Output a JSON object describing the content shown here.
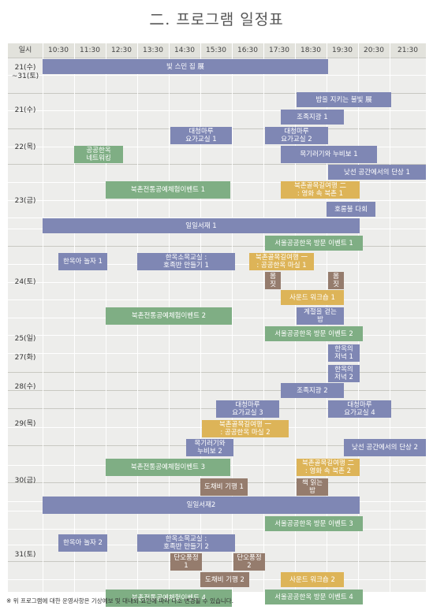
{
  "page_title": "二. 프로그램 일정표",
  "header": {
    "date_col": "일시",
    "times": [
      "10:30",
      "11:30",
      "12:30",
      "13:30",
      "14:30",
      "15:30",
      "16:30",
      "17:30",
      "18:30",
      "19:30",
      "20:30",
      "21:30"
    ]
  },
  "days": [
    "21(수)\n~31(토)",
    "21(수)",
    "22(목)",
    "23(금)",
    "24(토)",
    "25(일)",
    "27(화)",
    "28(수)",
    "29(목)",
    "30(금)",
    "31(토)"
  ],
  "colors": {
    "purple": "#7f87b4",
    "green": "#7fae84",
    "yellow": "#ddb458",
    "brown": "#957c6d"
  },
  "events": [
    {
      "label": "빛 스민 집 展",
      "color": "purple"
    },
    {
      "label": "밤을 지키는 불빛 展",
      "color": "purple"
    },
    {
      "label": "조족지광 1",
      "color": "purple"
    },
    {
      "label": "대청마루\n요가교실 1",
      "color": "purple"
    },
    {
      "label": "대청마루\n요가교실 2",
      "color": "purple"
    },
    {
      "label": "공공한옥\n네트워킹",
      "color": "green"
    },
    {
      "label": "목기러기와 누비보 1",
      "color": "purple"
    },
    {
      "label": "낮선 공간에서의 단상 1",
      "color": "purple"
    },
    {
      "label": "북촌전통공예체험이벤트 1",
      "color": "green"
    },
    {
      "label": "북촌골목길여행 二\n: 영화 속 북촌 1",
      "color": "yellow"
    },
    {
      "label": "호롱불 다회",
      "color": "purple"
    },
    {
      "label": "일일서재 1",
      "color": "purple"
    },
    {
      "label": "서울공공한옥 방문 이벤트 1",
      "color": "green"
    },
    {
      "label": "한옥아 놀자 1",
      "color": "purple"
    },
    {
      "label": "한옥소목교실 :\n호족반 만들기 1",
      "color": "purple"
    },
    {
      "label": "북촌골목길여행 一\n: 공공한옥 마실 1",
      "color": "yellow"
    },
    {
      "label": "몸\n짓",
      "color": "brown"
    },
    {
      "label": "몸\n짓",
      "color": "brown"
    },
    {
      "label": "사운드 워크숍 1",
      "color": "yellow"
    },
    {
      "label": "북촌전통공예체험이벤트 2",
      "color": "green"
    },
    {
      "label": "계절을 걷는\n밤",
      "color": "purple"
    },
    {
      "label": "서울공공한옥 방문 이벤트 2",
      "color": "green"
    },
    {
      "label": "한옥의\n저녁 1",
      "color": "purple"
    },
    {
      "label": "한옥의\n저녁 2",
      "color": "purple"
    },
    {
      "label": "조족지광 2",
      "color": "purple"
    },
    {
      "label": "대청마루\n요가교실 3",
      "color": "purple"
    },
    {
      "label": "대청마루\n요가교실 4",
      "color": "purple"
    },
    {
      "label": "북촌골목길여행 一\n: 공공한옥 마실 2",
      "color": "yellow"
    },
    {
      "label": "목기러기와\n누비보 2",
      "color": "purple"
    },
    {
      "label": "낮선 공간에서의 단상 2",
      "color": "purple"
    },
    {
      "label": "북촌전통공예체험이벤트 3",
      "color": "green"
    },
    {
      "label": "북촌골목길여행 二\n: 영화 속 북촌 2",
      "color": "yellow"
    },
    {
      "label": "도채비 기행 1",
      "color": "brown"
    },
    {
      "label": "책 읽는\n밤",
      "color": "brown"
    },
    {
      "label": "일일서재2",
      "color": "purple"
    },
    {
      "label": "서울공공한옥 방문 이벤트 3",
      "color": "green"
    },
    {
      "label": "한옥아 놀자 2",
      "color": "purple"
    },
    {
      "label": "한옥소목교실 :\n호족반 만들기 2",
      "color": "purple"
    },
    {
      "label": "단오풍정\n1",
      "color": "brown"
    },
    {
      "label": "단오풍정\n2",
      "color": "brown"
    },
    {
      "label": "도채비 기행 2",
      "color": "brown"
    },
    {
      "label": "사운드 워크숍 2",
      "color": "yellow"
    },
    {
      "label": "북촌전통공예체험이벤트 4",
      "color": "green"
    },
    {
      "label": "서울공공한옥 방문 이벤트 4",
      "color": "green"
    }
  ],
  "footnote": "※ 위 프로그램에 대한 운영사항은 기상예보 및 대내외 요인에 따라 다소 변경될 수 있습니다."
}
